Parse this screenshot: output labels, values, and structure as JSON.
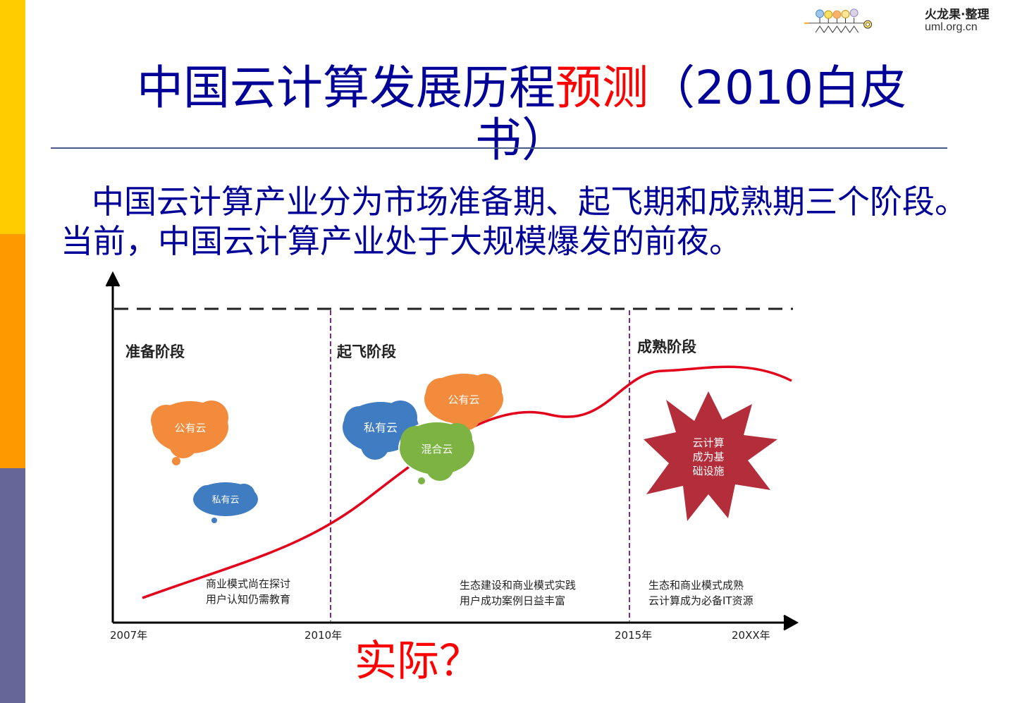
{
  "logo": {
    "brand": "火龙果·整理",
    "url": "uml.org.cn",
    "colors": [
      "#6fa8dc",
      "#ffd966",
      "#f6b26b",
      "#ffe599",
      "#b4a7d6"
    ]
  },
  "slide": {
    "title_main": "中国云计算发展历程",
    "title_accent": "预测",
    "title_tail": "（2010白皮书）",
    "body": "中国云计算产业分为市场准备期、起飞期和成熟期三个阶段。当前，中国云计算产业处于大规模爆发的前夜。",
    "question": "实际？"
  },
  "diagram": {
    "stages": [
      {
        "label": "准备阶段",
        "note_line1": "商业模式尚在探讨",
        "note_line2": "用户认知仍需教育"
      },
      {
        "label": "起飞阶段",
        "note_line1": "生态建设和商业模式实践",
        "note_line2": "用户成功案例日益丰富"
      },
      {
        "label": "成熟阶段",
        "note_line1": "生态和商业模式成熟",
        "note_line2": "云计算成为必备IT资源"
      }
    ],
    "axis_ticks": [
      "2007年",
      "2010年",
      "2015年",
      "20XX年"
    ],
    "clouds": {
      "stage1_public": "公有云",
      "stage1_private": "私有云",
      "stage2_public": "公有云",
      "stage2_private": "私有云",
      "stage2_hybrid": "混合云"
    },
    "burst": {
      "line1": "云计算",
      "line2": "成为基",
      "line3": "础设施"
    },
    "colors": {
      "curve": "#e3001b",
      "divider": "#7b2d8e",
      "public_cloud": "#f28b3c",
      "private_cloud": "#3f7cc2",
      "hybrid_cloud": "#7cb342",
      "burst": "#b32d3a"
    }
  }
}
